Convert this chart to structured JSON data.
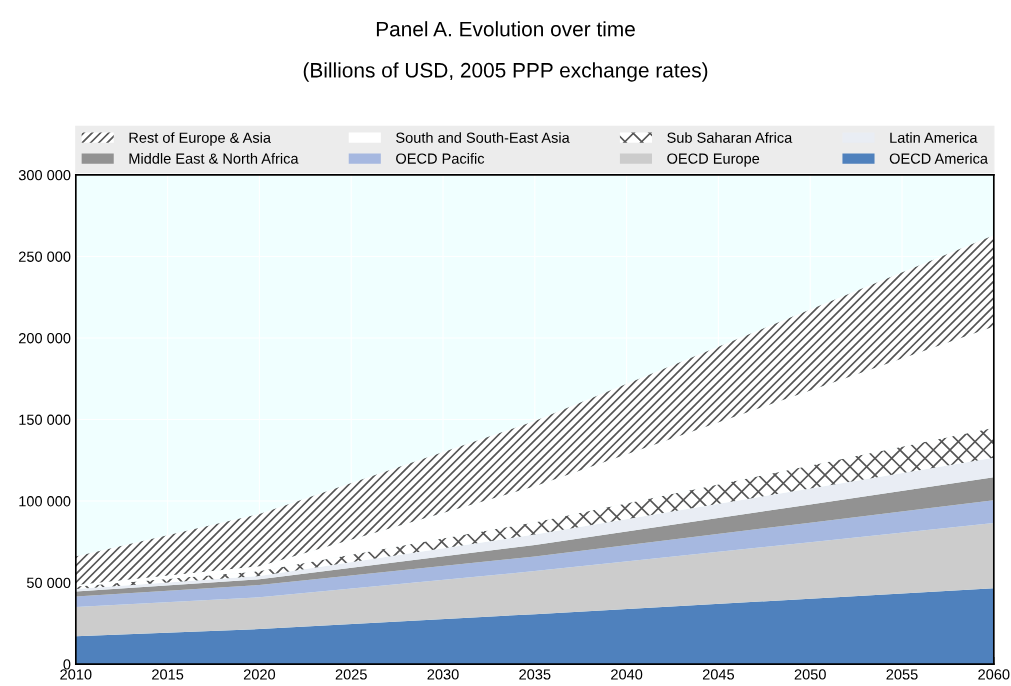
{
  "chart_data": {
    "type": "area",
    "stacked": true,
    "title": "Panel A. Evolution over time",
    "subtitle": "(Billions of USD, 2005 PPP exchange rates)",
    "x": [
      2010,
      2020,
      2035,
      2050,
      2060
    ],
    "series": [
      {
        "name": "OECD America",
        "color": "#4f81bd",
        "values": [
          17000,
          21500,
          30600,
          40100,
          46500
        ]
      },
      {
        "name": "OECD Europe",
        "color": "#cccccc",
        "values": [
          18000,
          19500,
          26400,
          34600,
          40000
        ]
      },
      {
        "name": "OECD Pacific",
        "color": "#a6b8e0",
        "values": [
          6500,
          7500,
          9000,
          12000,
          14000
        ]
      },
      {
        "name": "Middle East & North Africa",
        "color": "#929292",
        "values": [
          3000,
          3500,
          7000,
          11200,
          14000
        ]
      },
      {
        "name": "Latin America",
        "color": "#e9edf4",
        "values": [
          1500,
          2000,
          6500,
          9800,
          12000
        ]
      },
      {
        "name": "Sub Saharan Africa",
        "color": "#ffffff",
        "values": [
          1500,
          3000,
          7500,
          14100,
          18500
        ]
      },
      {
        "name": "South and South-East Asia",
        "color": "#ffffff",
        "values": [
          1000,
          3000,
          22000,
          46000,
          62000
        ]
      },
      {
        "name": "Rest of Europe & Asia",
        "color": "#ffffff",
        "values": [
          17500,
          32000,
          40000,
          49600,
          56000
        ]
      }
    ],
    "xlim": [
      2010,
      2060
    ],
    "xticks": [
      2010,
      2015,
      2020,
      2025,
      2030,
      2035,
      2040,
      2045,
      2050,
      2055,
      2060
    ],
    "ylim": [
      0,
      300000
    ],
    "yticks": [
      0,
      {
        "value": 50000,
        "label": "50 000"
      },
      {
        "value": 100000,
        "label": "100 000"
      },
      {
        "value": 150000,
        "label": "150 000"
      },
      {
        "value": 200000,
        "label": "200 000"
      },
      {
        "value": 250000,
        "label": "250 000"
      },
      {
        "value": 300000,
        "label": "300 000"
      }
    ],
    "grid": true,
    "legend": "top"
  }
}
